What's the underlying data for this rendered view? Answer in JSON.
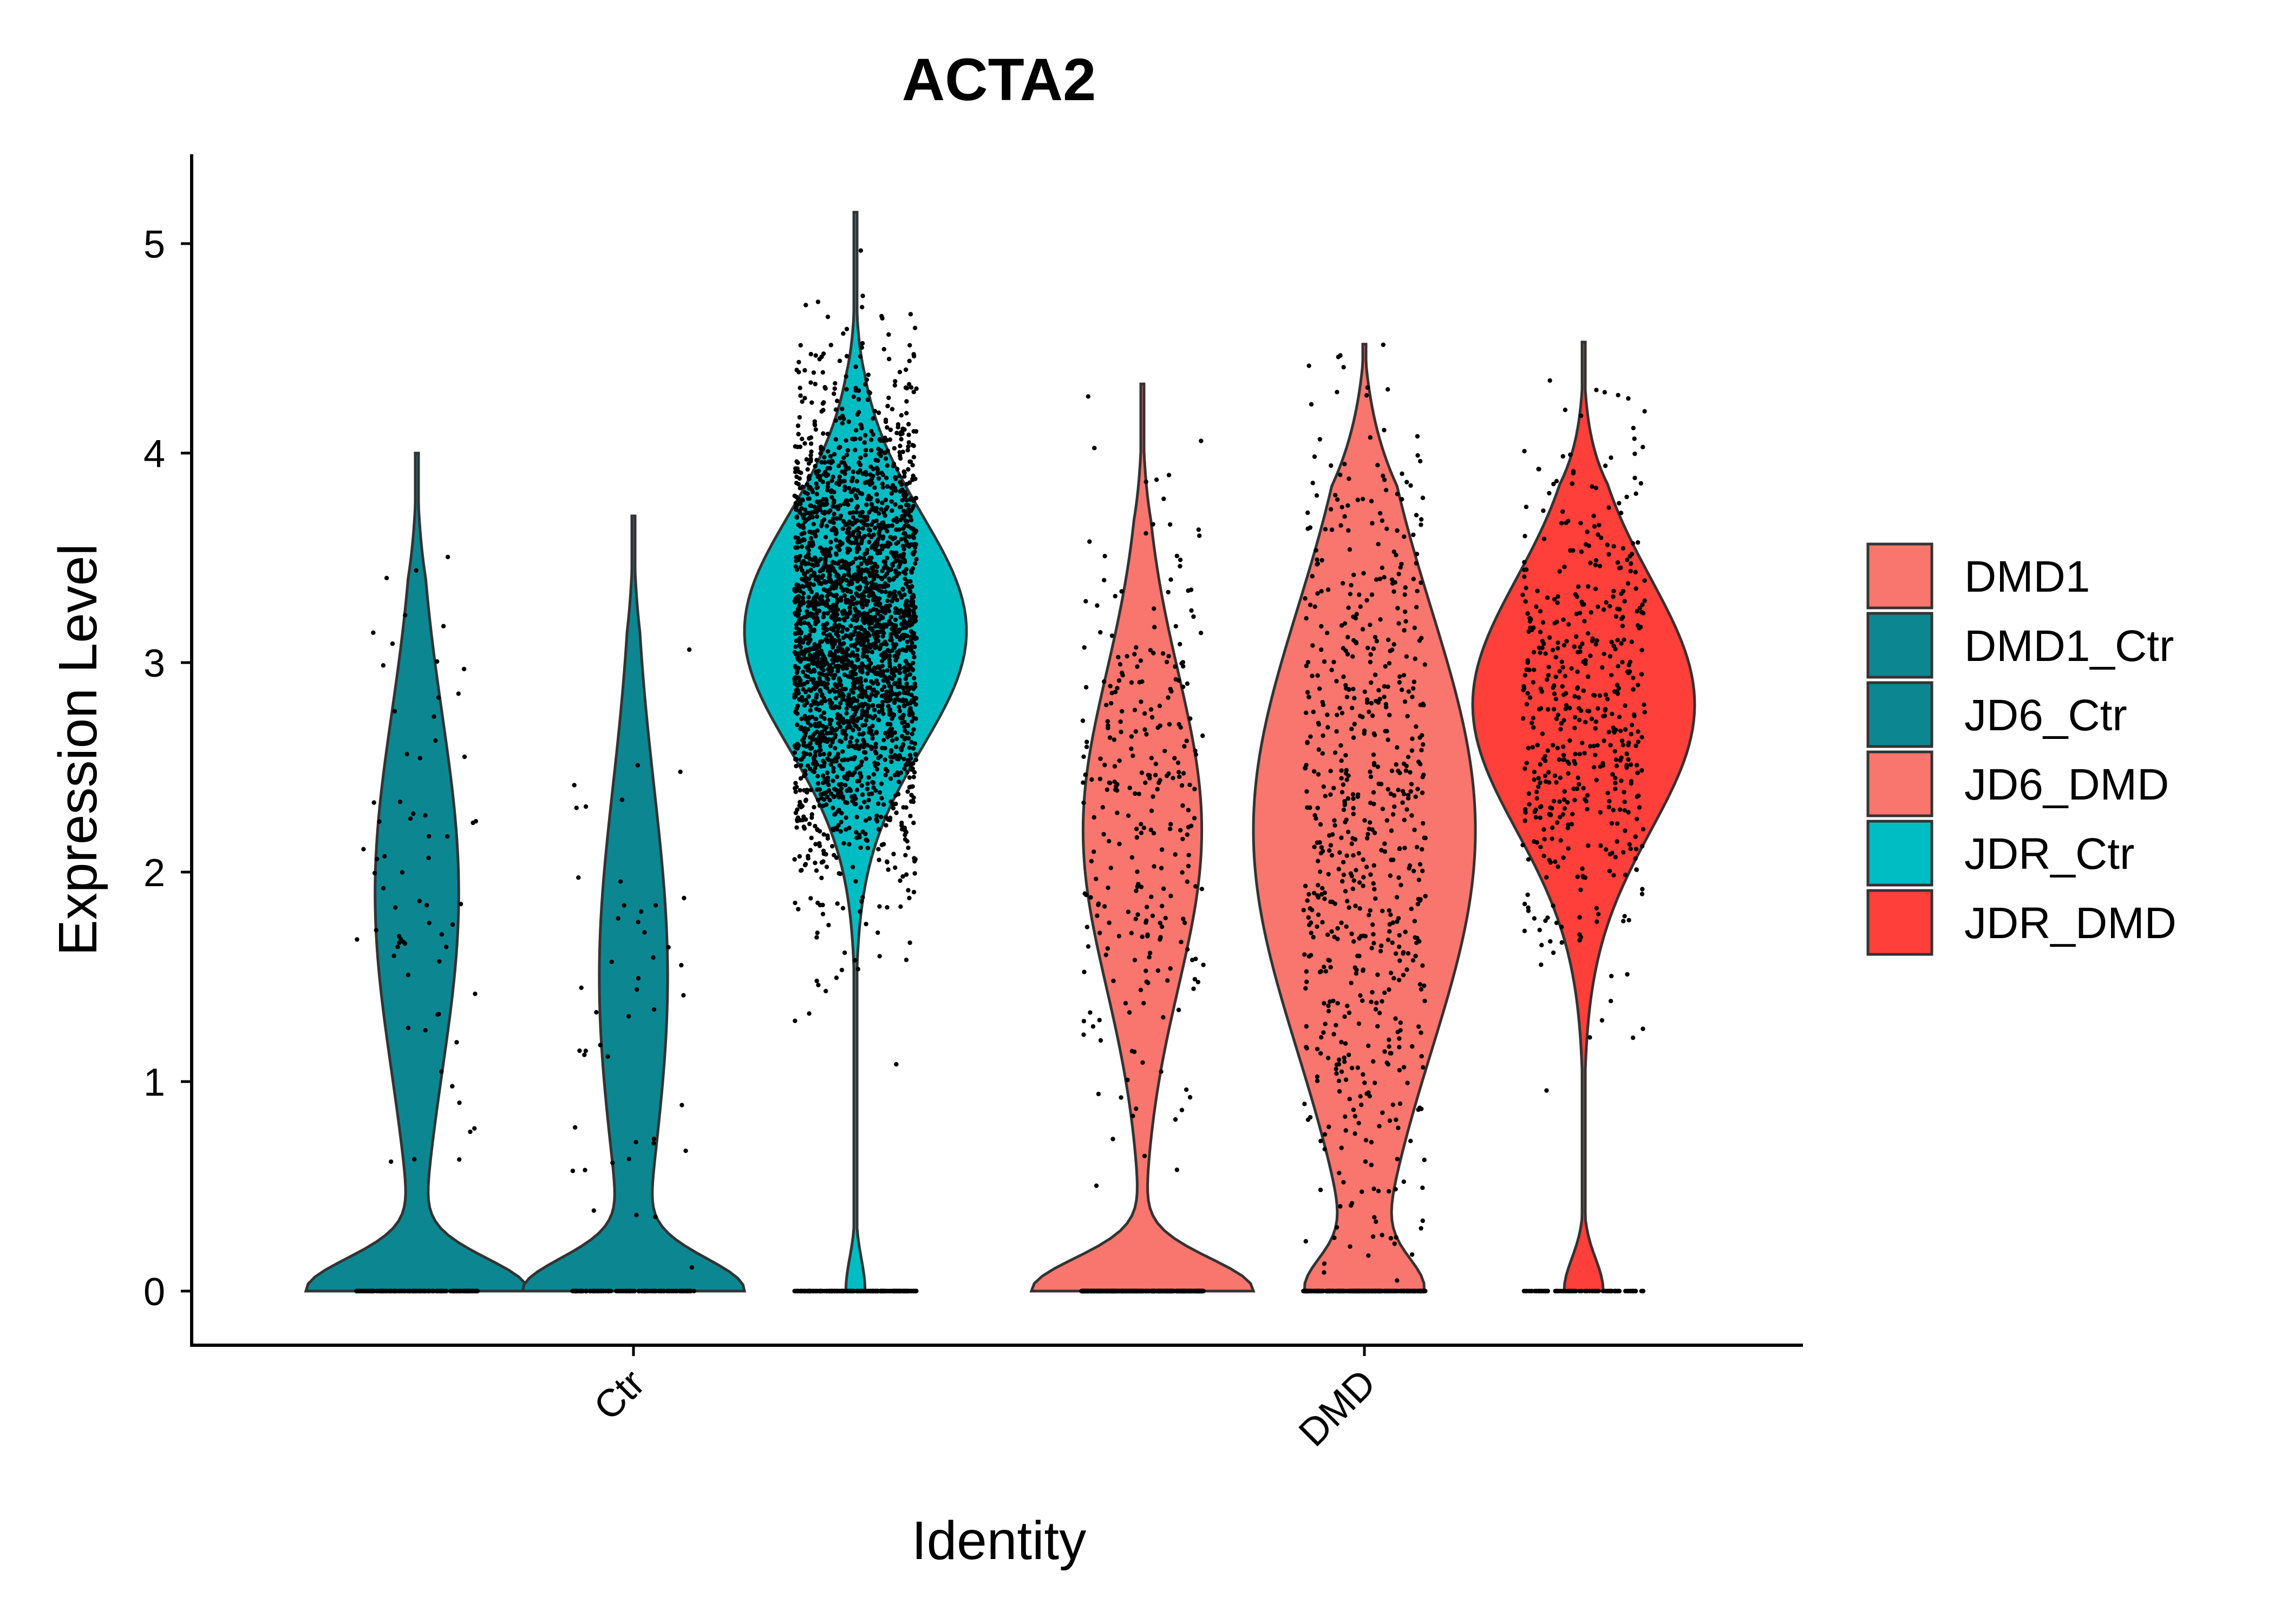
{
  "chart_data": {
    "type": "violin",
    "title": "ACTA2",
    "xlabel": "Identity",
    "ylabel": "Expression Level",
    "ylim": [
      -0.25,
      5.4
    ],
    "yticks": [
      0,
      1,
      2,
      3,
      4,
      5
    ],
    "categories": [
      "Ctr",
      "DMD"
    ],
    "legend_position": "right",
    "series": [
      {
        "name": "DMD1_Ctr",
        "identity": "Ctr",
        "color": "#0C8791",
        "max": 4.0,
        "zero_mass": 0.72,
        "mode": 1.9,
        "spread": 0.85,
        "points": 260
      },
      {
        "name": "JD6_Ctr",
        "identity": "Ctr",
        "color": "#0C8791",
        "max": 3.7,
        "zero_mass": 0.75,
        "mode": 1.5,
        "spread": 0.9,
        "points": 200
      },
      {
        "name": "JDR_Ctr",
        "identity": "Ctr",
        "color": "#00BCC3",
        "max": 5.15,
        "zero_mass": 0.08,
        "mode": 3.15,
        "spread": 0.55,
        "points": 3000
      },
      {
        "name": "DMD1",
        "identity": "DMD",
        "color": "#F8766D",
        "max": 4.33,
        "zero_mass": 0.65,
        "mode": 2.2,
        "spread": 0.75,
        "points": 850
      },
      {
        "name": "JD6_DMD",
        "identity": "DMD",
        "color": "#F8766D",
        "max": 4.52,
        "zero_mass": 0.3,
        "mode": 2.2,
        "spread": 1.05,
        "points": 1000
      },
      {
        "name": "JDR_DMD",
        "identity": "DMD",
        "color": "#FF3F3A",
        "max": 4.53,
        "zero_mass": 0.15,
        "mode": 2.8,
        "spread": 0.6,
        "points": 600
      }
    ],
    "legend": [
      {
        "name": "DMD1",
        "color": "#F8766D"
      },
      {
        "name": "DMD1_Ctr",
        "color": "#0C8791"
      },
      {
        "name": "JD6_Ctr",
        "color": "#0C8791"
      },
      {
        "name": "JD6_DMD",
        "color": "#F8766D"
      },
      {
        "name": "JDR_Ctr",
        "color": "#00BCC3"
      },
      {
        "name": "JDR_DMD",
        "color": "#FF3F3A"
      }
    ]
  }
}
